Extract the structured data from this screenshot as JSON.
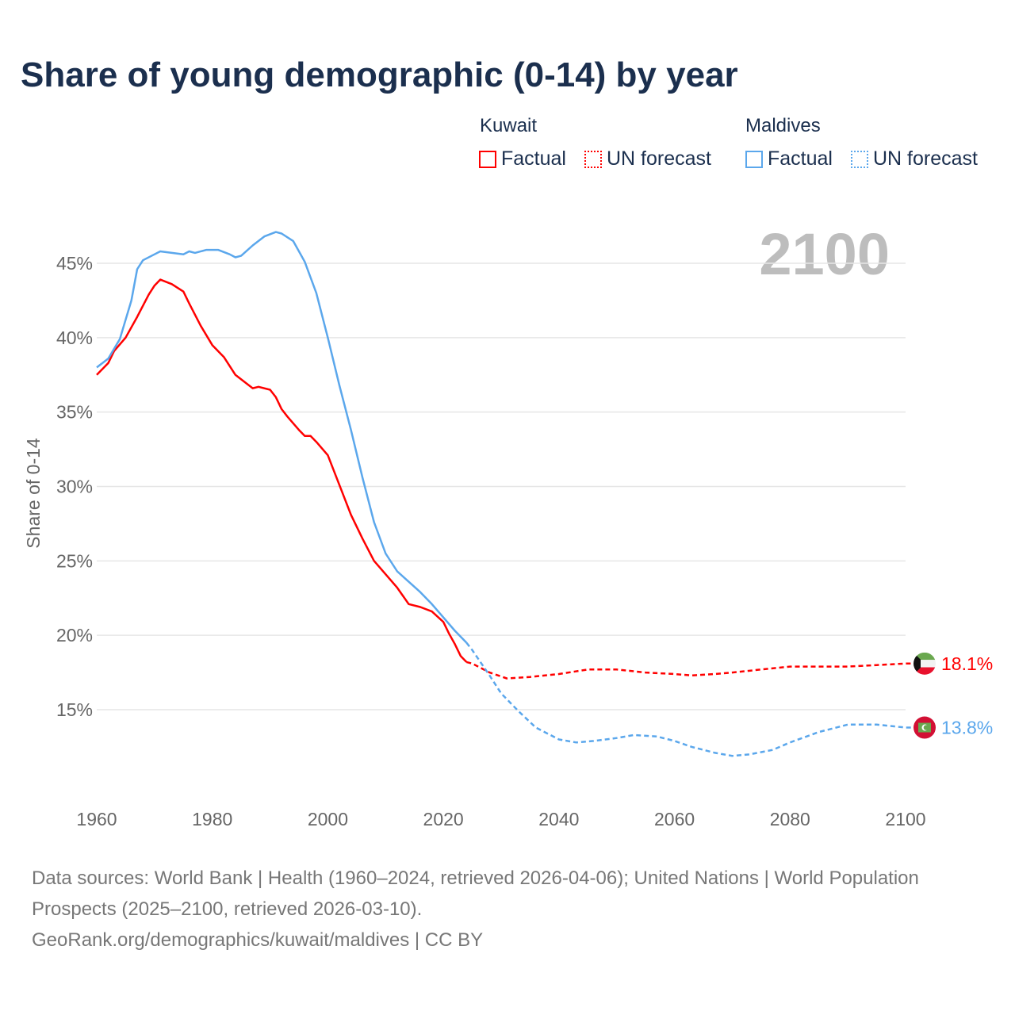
{
  "title": "Share of young demographic (0-14) by year",
  "legend": {
    "groups": [
      {
        "country": "Kuwait",
        "factual": "Factual",
        "forecast": "UN forecast",
        "color": "#ff0000"
      },
      {
        "country": "Maldives",
        "factual": "Factual",
        "forecast": "UN forecast",
        "color": "#5ba7ec"
      }
    ]
  },
  "current_year": "2100",
  "source": {
    "line1": "Data sources: World Bank | Health (1960–2024, retrieved 2026-04-06); United Nations | World Population Prospects (2025–2100, retrieved 2026-03-10).",
    "line2": "GeoRank.org/demographics/kuwait/maldives | CC BY"
  },
  "chart_data": {
    "type": "line",
    "title": "Share of young demographic (0-14) by year",
    "xlabel": "",
    "ylabel": "Share of 0-14",
    "xlim": [
      1960,
      2100
    ],
    "ylim": [
      10,
      48
    ],
    "x_ticks": [
      "1960",
      "1980",
      "2000",
      "2020",
      "2040",
      "2060",
      "2080",
      "2100"
    ],
    "x_tick_values": [
      1960,
      1980,
      2000,
      2020,
      2040,
      2060,
      2080,
      2100
    ],
    "y_ticks": [
      "15%",
      "20%",
      "25%",
      "30%",
      "35%",
      "40%",
      "45%"
    ],
    "y_tick_values": [
      15,
      20,
      25,
      30,
      35,
      40,
      45
    ],
    "grid": true,
    "legend_position": "top-right",
    "series": [
      {
        "name": "Kuwait",
        "color": "#ff0000",
        "end_label": "18.1%",
        "flag": "kuwait-flag",
        "factual": {
          "x": [
            1960,
            1962,
            1963,
            1965,
            1967,
            1969,
            1970,
            1971,
            1973,
            1975,
            1976,
            1978,
            1980,
            1982,
            1984,
            1986,
            1987,
            1988,
            1990,
            1991,
            1992,
            1993,
            1995,
            1996,
            1997,
            1998,
            2000,
            2002,
            2004,
            2006,
            2008,
            2010,
            2012,
            2014,
            2016,
            2018,
            2020,
            2021,
            2022,
            2023,
            2024
          ],
          "y": [
            37.5,
            38.3,
            39.1,
            40.0,
            41.4,
            42.9,
            43.5,
            43.9,
            43.6,
            43.1,
            42.3,
            40.8,
            39.5,
            38.7,
            37.5,
            36.9,
            36.6,
            36.7,
            36.5,
            36.0,
            35.2,
            34.7,
            33.8,
            33.4,
            33.4,
            33.0,
            32.1,
            30.1,
            28.1,
            26.5,
            25.0,
            24.1,
            23.2,
            22.1,
            21.9,
            21.6,
            20.9,
            20.1,
            19.4,
            18.6,
            18.2
          ]
        },
        "forecast": {
          "x": [
            2024,
            2025,
            2028,
            2031,
            2035,
            2040,
            2045,
            2050,
            2055,
            2060,
            2063,
            2067,
            2070,
            2075,
            2080,
            2085,
            2090,
            2095,
            2100
          ],
          "y": [
            18.2,
            18.1,
            17.5,
            17.1,
            17.2,
            17.4,
            17.7,
            17.7,
            17.5,
            17.4,
            17.3,
            17.4,
            17.5,
            17.7,
            17.9,
            17.9,
            17.9,
            18.0,
            18.1
          ]
        }
      },
      {
        "name": "Maldives",
        "color": "#5ba7ec",
        "end_label": "13.8%",
        "flag": "maldives-flag",
        "factual": {
          "x": [
            1960,
            1962,
            1964,
            1966,
            1967,
            1968,
            1970,
            1971,
            1973,
            1975,
            1976,
            1977,
            1979,
            1981,
            1983,
            1984,
            1985,
            1987,
            1989,
            1991,
            1992,
            1994,
            1996,
            1998,
            2000,
            2002,
            2004,
            2006,
            2008,
            2010,
            2012,
            2014,
            2016,
            2018,
            2020,
            2022,
            2024
          ],
          "y": [
            38.0,
            38.6,
            39.9,
            42.5,
            44.6,
            45.2,
            45.6,
            45.8,
            45.7,
            45.6,
            45.8,
            45.7,
            45.9,
            45.9,
            45.6,
            45.4,
            45.5,
            46.2,
            46.8,
            47.1,
            47.0,
            46.5,
            45.1,
            43.0,
            40.0,
            36.8,
            33.8,
            30.6,
            27.6,
            25.5,
            24.3,
            23.6,
            22.9,
            22.1,
            21.2,
            20.3,
            19.5
          ]
        },
        "forecast": {
          "x": [
            2024,
            2025,
            2028,
            2030,
            2033,
            2036,
            2040,
            2043,
            2046,
            2050,
            2053,
            2057,
            2060,
            2063,
            2067,
            2070,
            2073,
            2077,
            2080,
            2085,
            2090,
            2095,
            2100
          ],
          "y": [
            19.5,
            19.0,
            17.3,
            16.1,
            14.9,
            13.8,
            13.0,
            12.8,
            12.9,
            13.1,
            13.3,
            13.2,
            12.9,
            12.5,
            12.1,
            11.9,
            12.0,
            12.3,
            12.8,
            13.5,
            14.0,
            14.0,
            13.8
          ]
        }
      }
    ]
  }
}
